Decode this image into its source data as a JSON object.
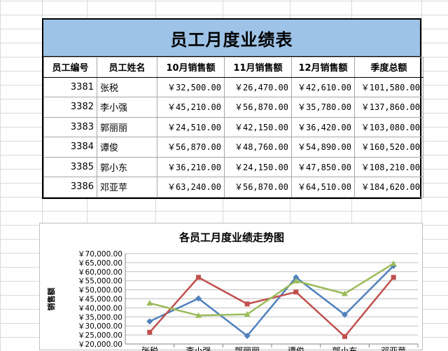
{
  "table": {
    "title": "员工月度业绩表",
    "headers": [
      "员工编号",
      "员工姓名",
      "10月销售额",
      "11月销售额",
      "12月销售额",
      "季度总额"
    ],
    "rows": [
      {
        "id": "3381",
        "name": "张税",
        "oct": "￥32,500.00",
        "nov": "￥26,470.00",
        "dec": "￥42,610.00",
        "total": "￥101,580.00"
      },
      {
        "id": "3382",
        "name": "李小强",
        "oct": "￥45,210.00",
        "nov": "￥56,870.00",
        "dec": "￥35,780.00",
        "total": "￥137,860.00"
      },
      {
        "id": "3383",
        "name": "郭丽丽",
        "oct": "￥24,510.00",
        "nov": "￥42,150.00",
        "dec": "￥36,420.00",
        "total": "￥103,080.00"
      },
      {
        "id": "3384",
        "name": "谭俊",
        "oct": "￥56,870.00",
        "nov": "￥48,760.00",
        "dec": "￥54,890.00",
        "total": "￥160,520.00"
      },
      {
        "id": "3385",
        "name": "郭小东",
        "oct": "￥36,210.00",
        "nov": "￥24,150.00",
        "dec": "￥47,850.00",
        "total": "￥108,210.00"
      },
      {
        "id": "3386",
        "name": "邓亚苹",
        "oct": "￥63,240.00",
        "nov": "￥56,870.00",
        "dec": "￥64,510.00",
        "total": "￥184,620.00"
      }
    ]
  },
  "chart_data": {
    "type": "line",
    "title": "各员工月度业绩走势图",
    "ylabel": "销售额",
    "categories": [
      "张税",
      "李小强",
      "郭丽丽",
      "谭俊",
      "郭小东",
      "邓亚苹"
    ],
    "ylim": [
      20000,
      70000
    ],
    "yticks": [
      "￥20,000.00",
      "￥25,000.00",
      "￥30,000.00",
      "￥35,000.00",
      "￥40,000.00",
      "￥45,000.00",
      "￥50,000.00",
      "￥55,000.00",
      "￥60,000.00",
      "￥65,000.00",
      "￥70,000.00"
    ],
    "grid": true,
    "series": [
      {
        "color": "#4f81bd",
        "marker": "diamond",
        "values": [
          32500,
          45210,
          24510,
          56870,
          36210,
          63240
        ]
      },
      {
        "color": "#c0504d",
        "marker": "square",
        "values": [
          26470,
          56870,
          42150,
          48760,
          24150,
          56870
        ]
      },
      {
        "color": "#9bbb59",
        "marker": "triangle",
        "values": [
          42610,
          35780,
          36420,
          54890,
          47850,
          64510
        ]
      }
    ]
  }
}
